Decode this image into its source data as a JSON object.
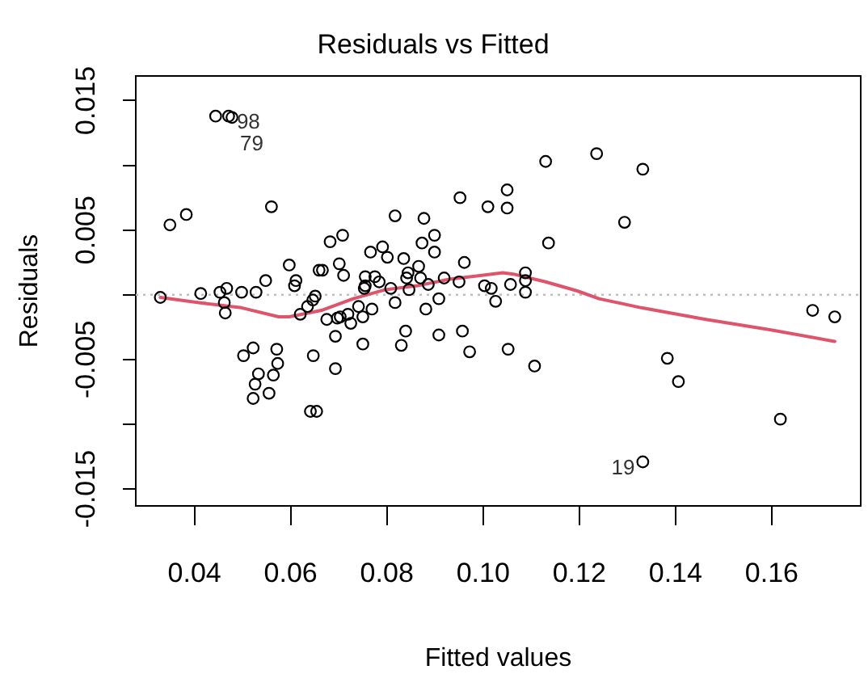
{
  "chart_data": {
    "type": "scatter",
    "title": "Residuals vs Fitted",
    "xlabel": "Fitted values",
    "ylabel": "Residuals",
    "xlim": [
      0.0278,
      0.1785
    ],
    "ylim": [
      -0.0163,
      0.0169
    ],
    "xticks": [
      0.04,
      0.06,
      0.08,
      {
        "value": 0.1,
        "label": "0.10"
      },
      0.12,
      0.14,
      0.16
    ],
    "yticks": [
      -0.015,
      {
        "value": -0.01,
        "label": null
      },
      -0.005,
      {
        "value": 0,
        "label": null
      },
      0.005,
      {
        "value": 0.01,
        "label": null
      },
      0.015
    ],
    "grid": false,
    "legend": false,
    "marker": "circle",
    "series": [
      {
        "color": "#000000",
        "x": [
          0.0329,
          0.0349,
          0.0383,
          0.0413,
          0.0453,
          0.0467,
          0.0462,
          0.0464,
          0.0498,
          0.0528,
          0.0548,
          0.056,
          0.0597,
          0.0611,
          0.0608,
          0.0502,
          0.0522,
          0.0533,
          0.0526,
          0.0522,
          0.0571,
          0.0573,
          0.0564,
          0.0555,
          0.0641,
          0.0654,
          0.0647,
          0.062,
          0.0635,
          0.0646,
          0.0651,
          0.0682,
          0.0708,
          0.0659,
          0.0666,
          0.0701,
          0.071,
          0.0693,
          0.0693,
          0.075,
          0.0675,
          0.0703,
          0.0719,
          0.0725,
          0.0753,
          0.0766,
          0.0791,
          0.0775,
          0.0769,
          0.075,
          0.113,
          0.0952,
          0.101,
          0.105,
          0.105,
          0.1136,
          0.0817,
          0.0877,
          0.0899,
          0.0899,
          0.0873,
          0.0801,
          0.0835,
          0.0844,
          0.0866,
          0.0841,
          0.087,
          0.0846,
          0.0886,
          0.0919,
          0.095,
          0.0961,
          0.0817,
          0.0808,
          0.0784,
          0.0755,
          0.0755,
          0.0741,
          0.0697,
          0.0881,
          0.0908,
          0.0839,
          0.083,
          0.0908,
          0.0957,
          0.0972,
          0.1003,
          0.1017,
          0.1026,
          0.1057,
          0.1088,
          0.1088,
          0.1088,
          0.1052,
          0.1107,
          0.1236,
          0.1332,
          0.1294,
          0.1685,
          0.1731,
          0.1383,
          0.1406,
          0.1618,
          0.1332,
          0.0444,
          0.0471,
          0.0478
        ],
        "values": [
          -0.0002,
          0.0054,
          0.0062,
          0.0001,
          0.0002,
          0.0005,
          -0.0006,
          -0.0014,
          0.0002,
          0.0002,
          0.0011,
          0.0068,
          0.0023,
          0.0011,
          0.0007,
          -0.0047,
          -0.0041,
          -0.0061,
          -0.0069,
          -0.008,
          -0.0042,
          -0.0053,
          -0.0062,
          -0.0076,
          -0.009,
          -0.009,
          -0.0047,
          -0.0015,
          -0.0009,
          -0.0004,
          -0.0001,
          0.0041,
          0.0046,
          0.0019,
          0.0019,
          0.0024,
          0.0015,
          -0.0032,
          -0.0057,
          -0.0038,
          -0.0019,
          -0.0017,
          -0.0015,
          -0.0022,
          0.0005,
          0.0033,
          0.0037,
          0.0014,
          -0.0011,
          -0.0017,
          0.0103,
          0.0075,
          0.0068,
          0.0081,
          0.0067,
          0.004,
          0.0061,
          0.0059,
          0.0046,
          0.0033,
          0.004,
          0.0029,
          0.0028,
          0.0017,
          0.0022,
          0.0013,
          0.0013,
          0.0004,
          0.0008,
          0.0013,
          0.001,
          0.0025,
          -0.0006,
          0.0005,
          0.001,
          0.0007,
          0.0014,
          -0.0009,
          -0.0018,
          -0.0011,
          -0.0003,
          -0.0028,
          -0.0039,
          -0.0031,
          -0.0028,
          -0.0044,
          0.0007,
          0.0005,
          -0.0005,
          0.0008,
          0.0017,
          0.0011,
          0.0002,
          -0.0042,
          -0.0055,
          0.0109,
          0.0097,
          0.0056,
          -0.0012,
          -0.0017,
          -0.0049,
          -0.0067,
          -0.0096,
          -0.0129,
          0.0138,
          0.0138,
          0.0137
        ]
      },
      {
        "type": "line",
        "color": "#df536b",
        "marker": "none",
        "x": [
          0.0329,
          0.0409,
          0.0498,
          0.0575,
          0.0597,
          0.0664,
          0.073,
          0.0797,
          0.0863,
          0.093,
          0.0997,
          0.1041,
          0.1063,
          0.113,
          0.1196,
          0.1241,
          0.1329,
          0.1463,
          0.1596,
          0.1731
        ],
        "values": [
          -0.0002,
          -0.0006,
          -0.001,
          -0.0017,
          -0.0017,
          -0.0012,
          -0.0003,
          0.0004,
          0.0007,
          0.0012,
          0.0015,
          0.0017,
          0.0016,
          0.001,
          0.0003,
          -0.0003,
          -0.001,
          -0.0019,
          -0.0027,
          -0.0036
        ]
      }
    ],
    "ref_lines": [
      {
        "axis": "y",
        "value": 0,
        "color": "#bebebe",
        "line_style": "dotted"
      }
    ],
    "annotations": [
      {
        "text": "98",
        "x": 0.0471,
        "y": 0.0138
      },
      {
        "text": "79",
        "x": 0.0478,
        "y": 0.0137
      },
      {
        "text": "19",
        "x": 0.1332,
        "y": -0.0129
      }
    ]
  }
}
